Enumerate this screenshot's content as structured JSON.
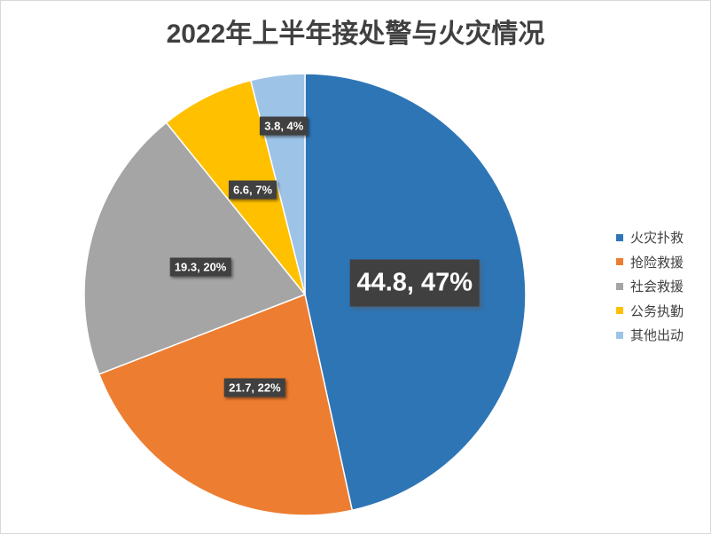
{
  "chart_data": {
    "type": "pie",
    "title": "2022年上半年接处警与火灾情况",
    "categories": [
      "火灾扑救",
      "抢险救援",
      "社会救援",
      "公务执勤",
      "其他出动"
    ],
    "values": [
      44.8,
      21.7,
      19.3,
      6.6,
      3.8
    ],
    "data_labels": [
      "44.8, 47%",
      "21.7, 22%",
      "19.3, 20%",
      "6.6, 7%",
      "3.8, 4%"
    ],
    "colors": [
      "#2E75B6",
      "#ED7D31",
      "#A5A5A5",
      "#FFC000",
      "#9DC3E6"
    ],
    "legend_position": "right"
  }
}
